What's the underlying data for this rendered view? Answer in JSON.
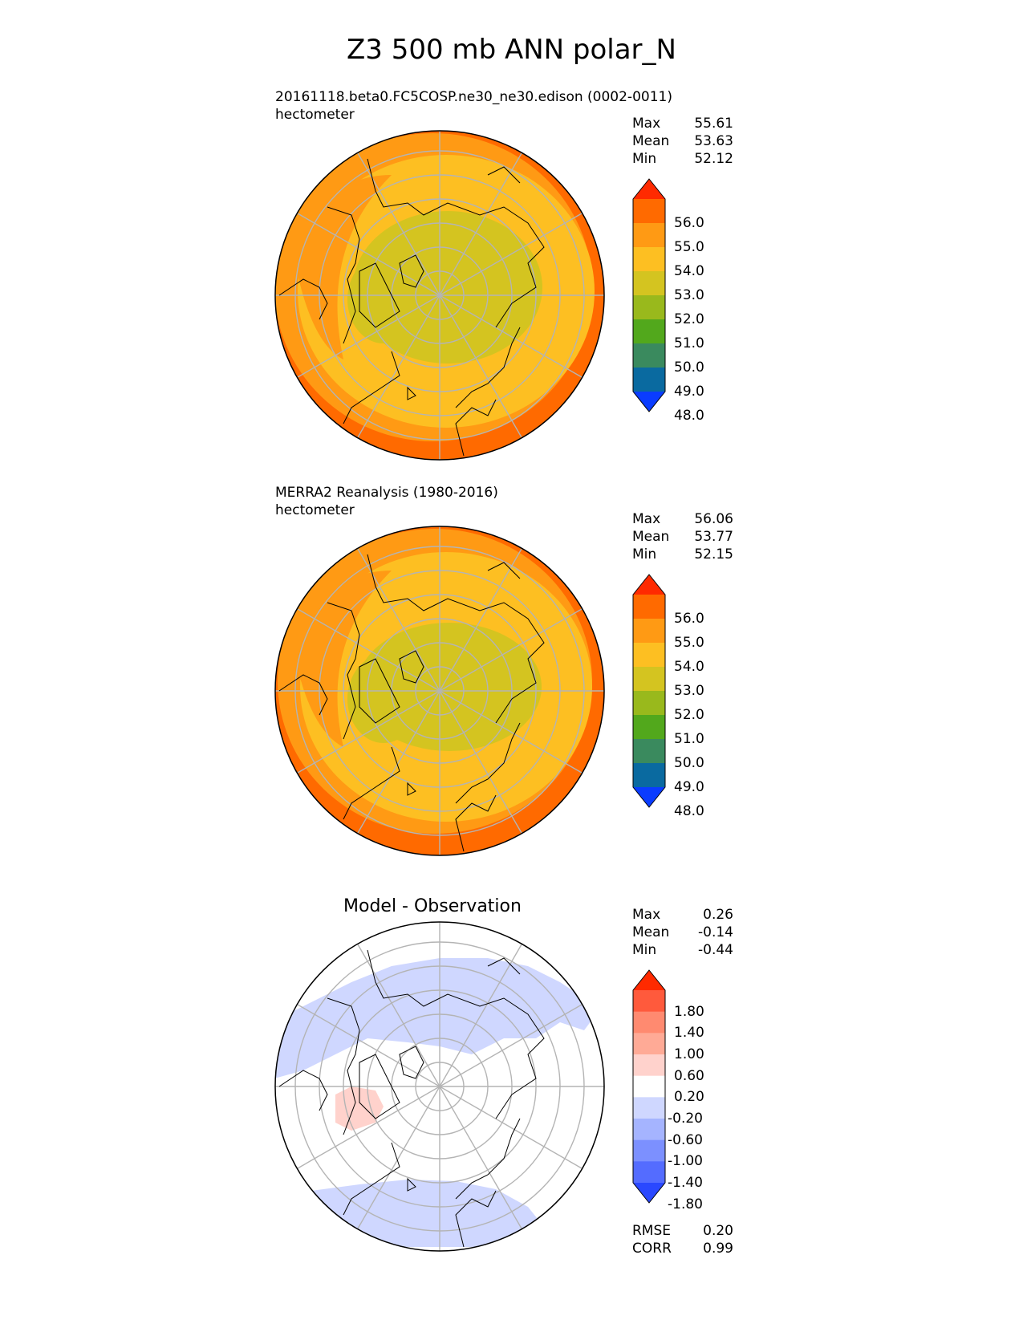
{
  "title": "Z3 500 mb ANN polar_N",
  "panels": [
    {
      "id": "model",
      "title": "20161118.beta0.FC5COSP.ne30_ne30.edison (0002-0011)",
      "units": "hectometer",
      "stats": [
        {
          "label": "Max",
          "value": "55.61"
        },
        {
          "label": "Mean",
          "value": "53.63"
        },
        {
          "label": "Min",
          "value": "52.12"
        }
      ]
    },
    {
      "id": "obs",
      "title": "MERRA2 Reanalysis (1980-2016)",
      "units": "hectometer",
      "stats": [
        {
          "label": "Max",
          "value": "56.06"
        },
        {
          "label": "Mean",
          "value": "53.77"
        },
        {
          "label": "Min",
          "value": "52.15"
        }
      ]
    },
    {
      "id": "diff",
      "title": "Model - Observation",
      "stats": [
        {
          "label": "Max",
          "value": "0.26"
        },
        {
          "label": "Mean",
          "value": "-0.14"
        },
        {
          "label": "Min",
          "value": "-0.44"
        }
      ],
      "metrics": [
        {
          "label": "RMSE",
          "value": "0.20"
        },
        {
          "label": "CORR",
          "value": "0.99"
        }
      ]
    }
  ],
  "colorbar_main": {
    "labels": [
      "56.0",
      "55.0",
      "54.0",
      "53.0",
      "52.0",
      "51.0",
      "50.0",
      "49.0",
      "48.0"
    ],
    "colors": [
      "#ff2a00",
      "#ff6a00",
      "#ff9a14",
      "#fdbf22",
      "#d4c420",
      "#99b91c",
      "#52a81c",
      "#3a8a5e",
      "#0a6aa0",
      "#0a3cff"
    ]
  },
  "colorbar_diff": {
    "labels": [
      "1.80",
      "1.40",
      "1.00",
      "0.60",
      "0.20",
      "-0.20",
      "-0.60",
      "-1.00",
      "-1.40",
      "-1.80"
    ],
    "colors": [
      "#ff2a00",
      "#ff5a3c",
      "#ff8a70",
      "#ffaa96",
      "#ffd2cc",
      "#ffffff",
      "#cfd7ff",
      "#a5b4ff",
      "#7c90ff",
      "#546cff",
      "#2a48ff"
    ]
  }
}
